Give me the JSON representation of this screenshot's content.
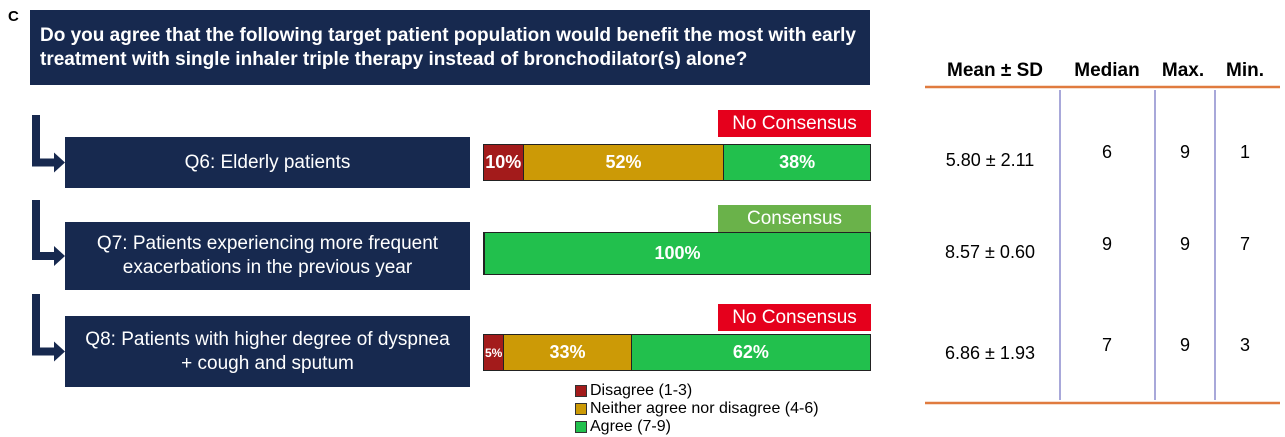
{
  "panel": "C",
  "question": "Do you agree that the following target patient population would benefit the most with early treatment with single inhaler triple therapy instead of bronchodilator(s) alone?",
  "series": [
    {
      "name": "Disagree (1-3)",
      "color": "#a31b1b"
    },
    {
      "name": "Neither agree nor disagree (4-6)",
      "color": "#cc9a06"
    },
    {
      "name": "Agree (7-9)",
      "color": "#22c04d"
    }
  ],
  "items": [
    {
      "label": "Q6: Elderly patients",
      "status": "No Consensus",
      "status_color": "#e5001c",
      "values": [
        10,
        52,
        38
      ],
      "value_labels": [
        "10%",
        "52%",
        "38%"
      ]
    },
    {
      "label": "Q7: Patients experiencing more frequent exacerbations in the previous year",
      "status": "Consensus",
      "status_color": "#6ab24a",
      "values": [
        0,
        0,
        100
      ],
      "value_labels": [
        null,
        null,
        "100%"
      ]
    },
    {
      "label": "Q8: Patients with higher degree of dyspnea + cough and sputum",
      "status": "No Consensus",
      "status_color": "#e5001c",
      "values": [
        5,
        33,
        62
      ],
      "value_labels": [
        "5%",
        "33%",
        "62%"
      ]
    }
  ],
  "table": {
    "headers": [
      "Mean ± SD",
      "Median",
      "Max.",
      "Min."
    ],
    "rows": [
      [
        "5.80 ± 2.11",
        "6",
        "9",
        "1"
      ],
      [
        "8.57 ± 0.60",
        "9",
        "9",
        "7"
      ],
      [
        "6.86 ± 1.93",
        "7",
        "9",
        "3"
      ]
    ]
  }
}
